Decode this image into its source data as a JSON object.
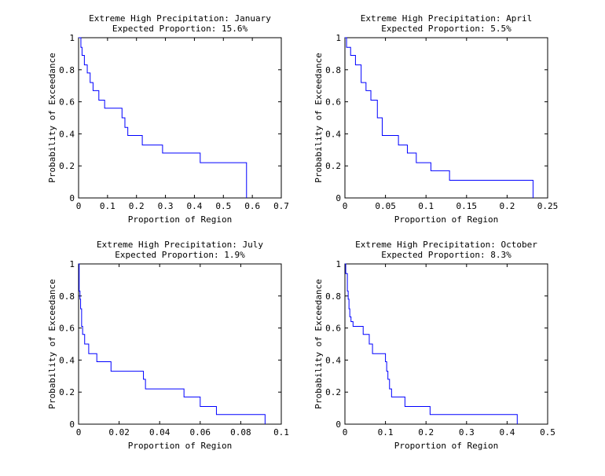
{
  "chart_data": [
    {
      "type": "line",
      "title": "Extreme High Precipitation: January",
      "subtitle": "Expected Proportion: 15.6%",
      "xlabel": "Proportion of Region",
      "ylabel": "Probability of Exceedance",
      "xlim": [
        0,
        0.7
      ],
      "ylim": [
        0,
        1
      ],
      "xticks": [
        "0",
        "0.1",
        "0.2",
        "0.3",
        "0.4",
        "0.5",
        "0.6",
        "0.7"
      ],
      "yticks": [
        "0",
        "0.2",
        "0.4",
        "0.6",
        "0.8",
        "1"
      ],
      "grid": false,
      "series": [
        {
          "color": "#0000ff",
          "x": [
            0.005,
            0.008,
            0.012,
            0.02,
            0.03,
            0.04,
            0.05,
            0.07,
            0.09,
            0.15,
            0.16,
            0.17,
            0.22,
            0.29,
            0.42,
            0.58
          ],
          "y": [
            1.0,
            0.94,
            0.89,
            0.83,
            0.78,
            0.72,
            0.67,
            0.61,
            0.56,
            0.5,
            0.44,
            0.39,
            0.33,
            0.28,
            0.22,
            0.17
          ]
        }
      ]
    },
    {
      "type": "line",
      "title": "Extreme High Precipitation: April",
      "subtitle": "Expected Proportion: 5.5%",
      "xlabel": "Proportion of Region",
      "ylabel": "Probability of Exceedance",
      "xlim": [
        0,
        0.25
      ],
      "ylim": [
        0,
        1
      ],
      "xticks": [
        "0",
        "0.05",
        "0.1",
        "0.15",
        "0.2",
        "0.25"
      ],
      "yticks": [
        "0",
        "0.2",
        "0.4",
        "0.6",
        "0.8",
        "1"
      ],
      "grid": false,
      "series": [
        {
          "color": "#0000ff",
          "x": [
            0.001,
            0.002,
            0.007,
            0.013,
            0.02,
            0.026,
            0.032,
            0.04,
            0.046,
            0.066,
            0.077,
            0.088,
            0.106,
            0.129,
            0.232
          ],
          "y": [
            1.0,
            0.94,
            0.89,
            0.83,
            0.72,
            0.67,
            0.61,
            0.5,
            0.39,
            0.33,
            0.28,
            0.22,
            0.17,
            0.11,
            0.06
          ]
        }
      ]
    },
    {
      "type": "line",
      "title": "Extreme High Precipitation: July",
      "subtitle": "Expected Proportion: 1.9%",
      "xlabel": "Proportion of Region",
      "ylabel": "Probability of Exceedance",
      "xlim": [
        0,
        0.1
      ],
      "ylim": [
        0,
        1
      ],
      "xticks": [
        "0",
        "0.02",
        "0.04",
        "0.06",
        "0.08",
        "0.1"
      ],
      "yticks": [
        "0",
        "0.2",
        "0.4",
        "0.6",
        "0.8",
        "1"
      ],
      "grid": false,
      "series": [
        {
          "color": "#0000ff",
          "x": [
            0.0003,
            0.0007,
            0.001,
            0.0015,
            0.002,
            0.003,
            0.005,
            0.009,
            0.016,
            0.032,
            0.033,
            0.052,
            0.06,
            0.068,
            0.092
          ],
          "y": [
            0.83,
            0.78,
            0.72,
            0.61,
            0.56,
            0.5,
            0.44,
            0.39,
            0.33,
            0.28,
            0.22,
            0.17,
            0.11,
            0.06,
            0.0
          ]
        }
      ]
    },
    {
      "type": "line",
      "title": "Extreme High Precipitation: October",
      "subtitle": "Expected Proportion: 8.3%",
      "xlabel": "Proportion of Region",
      "ylabel": "Probability of Exceedance",
      "xlim": [
        0,
        0.5
      ],
      "ylim": [
        0,
        1
      ],
      "xticks": [
        "0",
        "0.1",
        "0.2",
        "0.3",
        "0.4",
        "0.5"
      ],
      "yticks": [
        "0",
        "0.2",
        "0.4",
        "0.6",
        "0.8",
        "1"
      ],
      "grid": false,
      "series": [
        {
          "color": "#0000ff",
          "x": [
            0.002,
            0.006,
            0.008,
            0.01,
            0.012,
            0.015,
            0.02,
            0.03,
            0.045,
            0.06,
            0.068,
            0.1,
            0.103,
            0.106,
            0.11,
            0.115,
            0.148,
            0.21,
            0.425
          ],
          "y": [
            0.94,
            0.83,
            0.78,
            0.72,
            0.67,
            0.64,
            0.61,
            0.61,
            0.56,
            0.5,
            0.44,
            0.39,
            0.33,
            0.28,
            0.22,
            0.17,
            0.11,
            0.06,
            0.0
          ]
        }
      ]
    }
  ]
}
